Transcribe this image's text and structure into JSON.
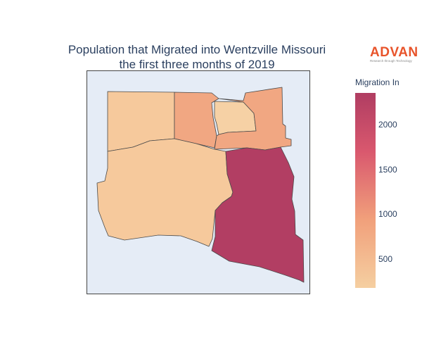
{
  "title": {
    "line1": "Population that Migrated into Wentzville Missouri",
    "line2": "the first three months of 2019"
  },
  "logo": {
    "word": "ADVAN",
    "tagline": "Research through Technology"
  },
  "colorbar": {
    "title": "Migration In",
    "ticks": [
      "2000",
      "1500",
      "1000",
      "500"
    ],
    "colors": {
      "low": "#f5cfa1",
      "mid": "#f1a07b",
      "high": "#b03d62"
    }
  },
  "map": {
    "background": "#e5ecf6",
    "regions": [
      {
        "name": "northwest-area",
        "fill": "#f6c99c"
      },
      {
        "name": "north-central-area",
        "fill": "#f1a782"
      },
      {
        "name": "north-inner-area",
        "fill": "#f6d1a5"
      },
      {
        "name": "northeast-area",
        "fill": "#f1a782"
      },
      {
        "name": "west-area",
        "fill": "#f6c99c"
      },
      {
        "name": "southeast-area",
        "fill": "#b23e63"
      }
    ]
  }
}
